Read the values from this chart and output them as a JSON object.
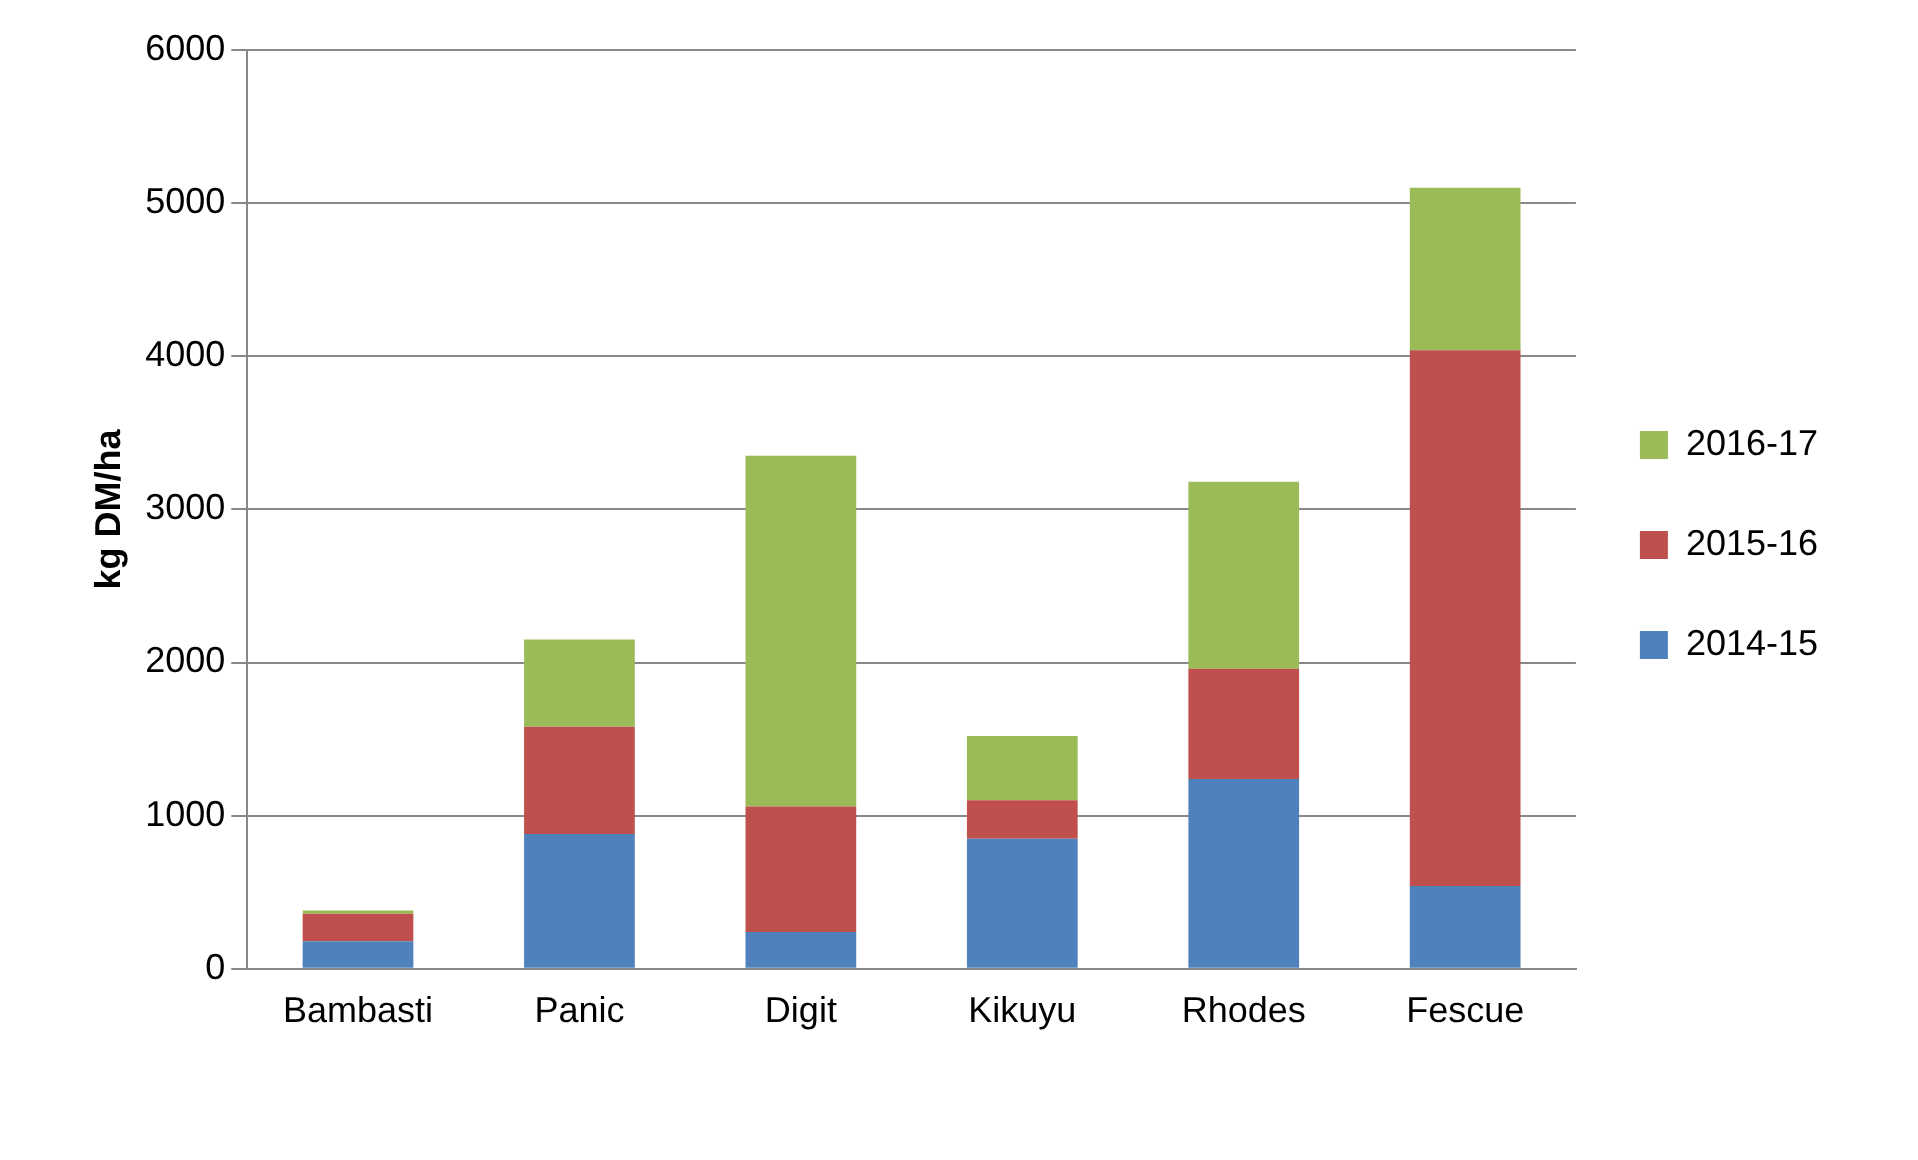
{
  "chart_data": {
    "type": "bar",
    "stacked": true,
    "ylabel": "kg DM/ha",
    "categories": [
      "Bambasti",
      "Panic",
      "Digit",
      "Kikuyu",
      "Rhodes",
      "Fescue"
    ],
    "series": [
      {
        "name": "2014-15",
        "color": "#4f81bd",
        "values": [
          180,
          880,
          240,
          850,
          1240,
          540
        ]
      },
      {
        "name": "2015-16",
        "color": "#c0504d",
        "values": [
          180,
          700,
          820,
          250,
          720,
          3500
        ]
      },
      {
        "name": "2016-17",
        "color": "#9bbb59",
        "values": [
          20,
          570,
          2290,
          420,
          1220,
          1060
        ]
      }
    ],
    "ylim": [
      0,
      6000
    ],
    "yticks": [
      0,
      1000,
      2000,
      3000,
      4000,
      5000,
      6000
    ],
    "grid": "y",
    "legend": "right"
  }
}
